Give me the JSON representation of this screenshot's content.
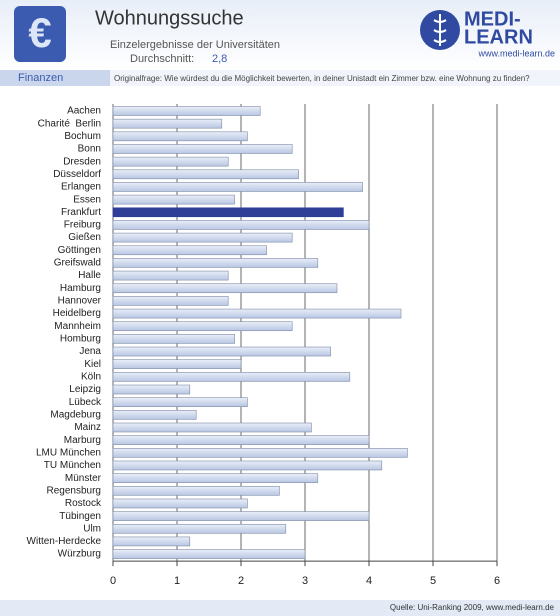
{
  "header": {
    "icon": "€",
    "title": "Wohnungssuche",
    "subtitle": "Einzelergebnisse der Universitäten",
    "average_label": "Durchschnitt:",
    "average": {
      "value": 2.8,
      "label": "2,8"
    },
    "logo": [
      "MEDI-",
      "LEARN"
    ],
    "logo_url": "www.medi-learn.de",
    "section": "Finanzen",
    "question": "Originalfrage: Wie würdest du die Möglichkeit bewerten, in deiner Unistadt ein Zimmer bzw. eine Wohnung zu finden?"
  },
  "chart_data": {
    "type": "hbar",
    "categories": [
      "Aachen",
      "Charité  Berlin",
      "Bochum",
      "Bonn",
      "Dresden",
      "Düsseldorf",
      "Erlangen",
      "Essen",
      "Frankfurt",
      "Freiburg",
      "Gießen",
      "Göttingen",
      "Greifswald",
      "Halle",
      "Hamburg",
      "Hannover",
      "Heidelberg",
      "Mannheim",
      "Homburg",
      "Jena",
      "Kiel",
      "Köln",
      "Leipzig",
      "Lübeck",
      "Magdeburg",
      "Mainz",
      "Marburg",
      "LMU München",
      "TU München",
      "Münster",
      "Regensburg",
      "Rostock",
      "Tübingen",
      "Ulm",
      "Witten-Herdecke",
      "Würzburg"
    ],
    "values": [
      2.3,
      1.7,
      2.1,
      2.8,
      1.8,
      2.9,
      3.9,
      1.9,
      3.6,
      4.0,
      2.8,
      2.4,
      3.2,
      1.8,
      3.5,
      1.8,
      4.5,
      2.8,
      1.9,
      3.4,
      2.0,
      3.7,
      1.2,
      2.1,
      1.3,
      3.1,
      4.0,
      4.6,
      4.2,
      3.2,
      2.6,
      2.1,
      4.0,
      2.7,
      1.2,
      3.0
    ],
    "color": "#cdd8ec",
    "highlight": "Frankfurt",
    "highlight_color": "#2f3f98",
    "xlim": [
      0,
      6
    ],
    "xticks": [
      0,
      1,
      2,
      3,
      4,
      5,
      6
    ],
    "grid": true
  },
  "footer": {
    "source": "Quelle: Uni-Ranking 2009, www.medi-learn.de"
  }
}
